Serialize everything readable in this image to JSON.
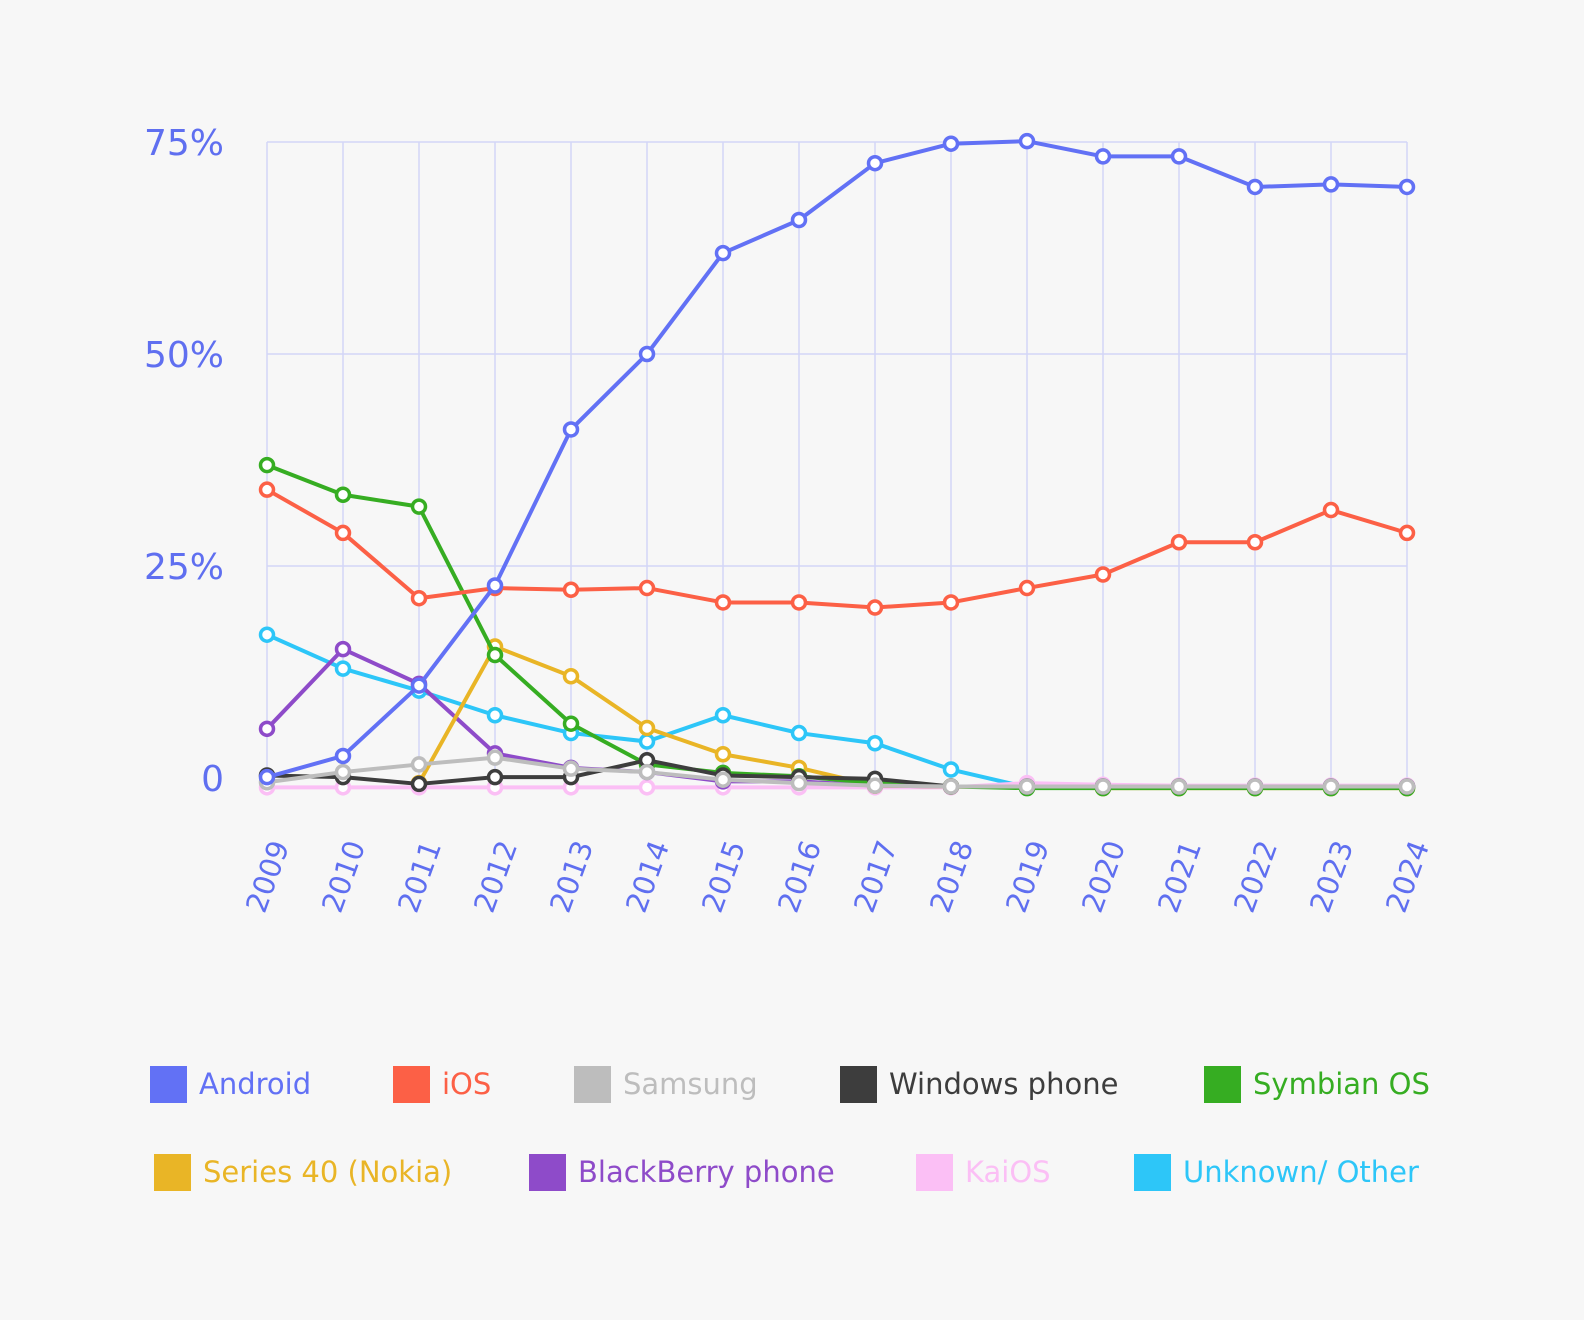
{
  "chart_data": {
    "type": "line",
    "title": "",
    "xlabel": "",
    "ylabel": "",
    "categories": [
      "2009",
      "2010",
      "2011",
      "2012",
      "2013",
      "2014",
      "2015",
      "2016",
      "2017",
      "2018",
      "2019",
      "2020",
      "2021",
      "2022",
      "2023",
      "2024"
    ],
    "ylim": [
      0,
      75
    ],
    "y_ticks": [
      {
        "value": 0,
        "label": "0"
      },
      {
        "value": 25,
        "label": "25%"
      },
      {
        "value": 50,
        "label": "50%"
      },
      {
        "value": 75,
        "label": "75%"
      }
    ],
    "grid": true,
    "legend_position": "bottom",
    "axis_color": "#5f6ff0",
    "grid_color": "#d3d6f7",
    "series": [
      {
        "name": "Android",
        "color": "#6271f5",
        "values": [
          0.1,
          2.6,
          10.9,
          22.7,
          41.1,
          50.0,
          61.9,
          65.8,
          72.5,
          74.8,
          75.1,
          73.3,
          73.3,
          69.7,
          70.0,
          69.7
        ]
      },
      {
        "name": "iOS",
        "color": "#fc6046",
        "values": [
          34.0,
          28.9,
          21.2,
          22.4,
          22.2,
          22.4,
          20.7,
          20.7,
          20.1,
          20.7,
          22.4,
          24.0,
          27.8,
          27.8,
          31.6,
          28.9
        ]
      },
      {
        "name": "Samsung",
        "color": "#bdbdbd",
        "values": [
          -0.5,
          0.7,
          1.6,
          2.4,
          1.1,
          0.7,
          -0.2,
          -0.6,
          -0.9,
          -1.0,
          -1.0,
          -1.0,
          -1.0,
          -1.0,
          -1.0,
          -1.0
        ]
      },
      {
        "name": "Windows phone",
        "color": "#3d3d3d",
        "values": [
          0.3,
          0.1,
          -0.7,
          0.1,
          0.1,
          2.1,
          0.3,
          0.1,
          -0.1,
          -1.0,
          -1.0,
          -1.0,
          -1.0,
          -1.0,
          -1.0,
          -1.0
        ]
      },
      {
        "name": "Symbian OS",
        "color": "#36ad22",
        "values": [
          36.9,
          33.4,
          32.0,
          14.5,
          6.4,
          1.6,
          0.6,
          0.2,
          -0.6,
          -1.0,
          -1.2,
          -1.2,
          -1.2,
          -1.2,
          -1.2,
          -1.2
        ]
      },
      {
        "name": "Series 40 (Nokia)",
        "color": "#e9b526",
        "values": [
          null,
          null,
          -0.6,
          15.5,
          12.0,
          5.9,
          2.8,
          1.2,
          -0.9,
          -1.0,
          -1.1,
          -1.2,
          -1.2,
          -1.2,
          -1.2,
          -1.2
        ]
      },
      {
        "name": "BlackBerry phone",
        "color": "#8e4bc9",
        "values": [
          5.8,
          15.2,
          11.1,
          2.9,
          1.2,
          0.7,
          -0.4,
          -0.4,
          -0.9,
          -1.0,
          -1.0,
          -1.0,
          -1.0,
          -1.0,
          -1.0,
          -1.0
        ]
      },
      {
        "name": "KaiOS",
        "color": "#fbbff5",
        "values": [
          -1.1,
          -1.1,
          -1.1,
          -1.1,
          -1.1,
          -1.1,
          -1.1,
          -1.1,
          -1.1,
          -1.1,
          -0.6,
          -0.8,
          -0.9,
          -0.9,
          -0.9,
          -0.9
        ]
      },
      {
        "name": "Unknown/ Other",
        "color": "#2dc6f8",
        "values": [
          16.9,
          12.9,
          10.3,
          7.4,
          5.3,
          4.3,
          7.4,
          5.3,
          4.1,
          1.0,
          -1.1,
          -1.1,
          -1.1,
          -1.1,
          -1.1,
          -1.1
        ]
      }
    ]
  }
}
